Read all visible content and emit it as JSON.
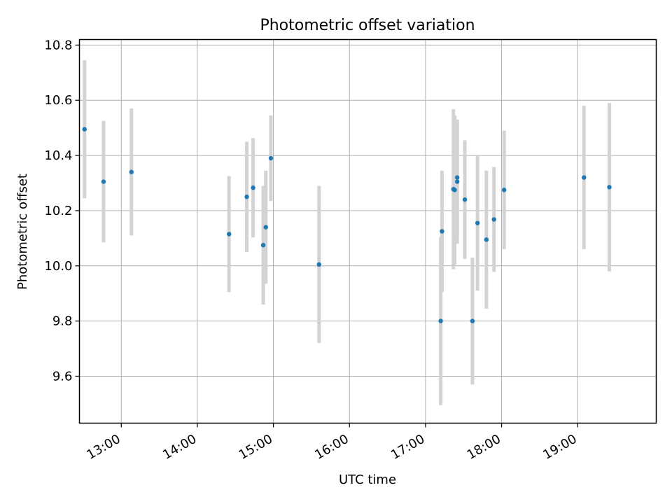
{
  "chart_data": {
    "type": "scatter",
    "title": "Photometric offset variation",
    "xlabel": "UTC time",
    "ylabel": "Photometric offset",
    "x_ticks": [
      "13:00",
      "14:00",
      "15:00",
      "16:00",
      "17:00",
      "18:00",
      "19:00"
    ],
    "y_ticks": [
      "9.6",
      "9.8",
      "10.0",
      "10.2",
      "10.4",
      "10.6",
      "10.8"
    ],
    "xlim": [
      "12:27",
      "20:02"
    ],
    "ylim": [
      9.43,
      10.82
    ],
    "grid": true,
    "series": [
      {
        "marker_color": "#1f77b4",
        "errorbar_color": "#d3d3d3",
        "points": [
          {
            "time": "12:31",
            "y": 10.495,
            "yerr": 0.25
          },
          {
            "time": "12:46",
            "y": 10.305,
            "yerr": 0.22
          },
          {
            "time": "13:08",
            "y": 10.34,
            "yerr": 0.23
          },
          {
            "time": "14:25",
            "y": 10.115,
            "yerr": 0.21
          },
          {
            "time": "14:39",
            "y": 10.25,
            "yerr": 0.2
          },
          {
            "time": "14:44",
            "y": 10.283,
            "yerr": 0.18
          },
          {
            "time": "14:52",
            "y": 10.075,
            "yerr": 0.215
          },
          {
            "time": "14:54",
            "y": 10.14,
            "yerr": 0.205
          },
          {
            "time": "14:58",
            "y": 10.39,
            "yerr": 0.155
          },
          {
            "time": "15:36",
            "y": 10.005,
            "yerr": 0.285
          },
          {
            "time": "17:12",
            "y": 9.8,
            "yerr": 0.305
          },
          {
            "time": "17:13",
            "y": 10.125,
            "yerr": 0.22
          },
          {
            "time": "17:22",
            "y": 10.278,
            "yerr": 0.29
          },
          {
            "time": "17:23",
            "y": 10.275,
            "yerr": 0.27
          },
          {
            "time": "17:25",
            "y": 10.32,
            "yerr": 0.21
          },
          {
            "time": "17:25",
            "y": 10.305,
            "yerr": 0.225
          },
          {
            "time": "17:31",
            "y": 10.24,
            "yerr": 0.215
          },
          {
            "time": "17:37",
            "y": 9.8,
            "yerr": 0.23
          },
          {
            "time": "17:41",
            "y": 10.155,
            "yerr": 0.245
          },
          {
            "time": "17:48",
            "y": 10.095,
            "yerr": 0.25
          },
          {
            "time": "17:54",
            "y": 10.168,
            "yerr": 0.19
          },
          {
            "time": "18:02",
            "y": 10.275,
            "yerr": 0.215
          },
          {
            "time": "19:05",
            "y": 10.32,
            "yerr": 0.26
          },
          {
            "time": "19:25",
            "y": 10.285,
            "yerr": 0.305
          }
        ]
      }
    ]
  }
}
